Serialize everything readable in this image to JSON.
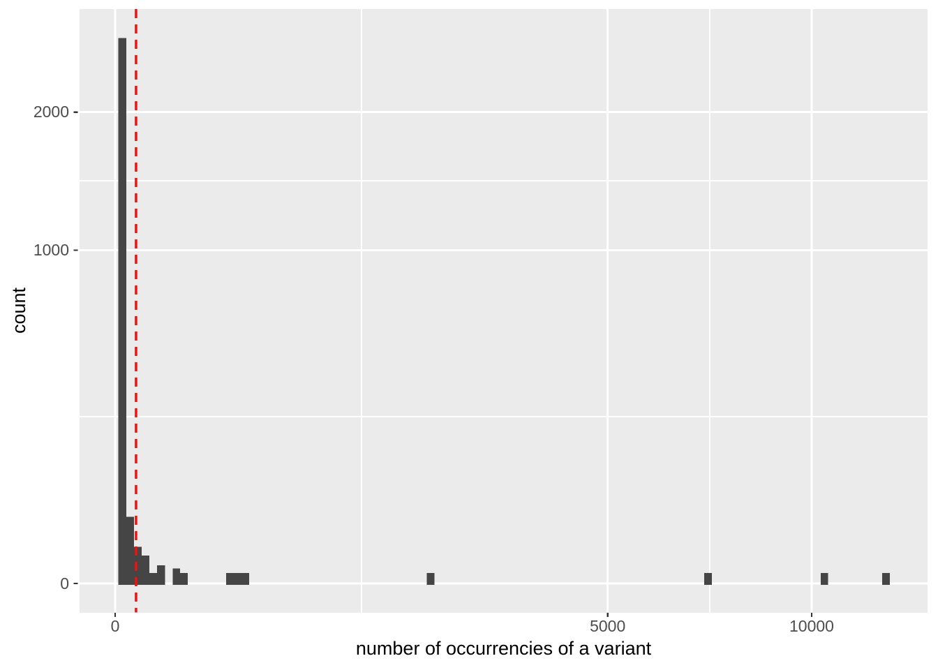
{
  "figure": {
    "background": "#FFFFFF"
  },
  "chart_data": {
    "type": "bar",
    "subtype": "histogram",
    "title": "",
    "xlabel": "number of occurrencies of a variant",
    "ylabel": "count",
    "x_scale": "sqrt",
    "y_scale": "sqrt",
    "xlim": [
      0,
      13600
    ],
    "ylim": [
      0,
      2970
    ],
    "grid": true,
    "legend_position": "none",
    "x_ticks": [
      {
        "value": 0,
        "label": "0"
      },
      {
        "value": 5000,
        "label": "5000"
      },
      {
        "value": 10000,
        "label": "10000"
      }
    ],
    "y_ticks": [
      {
        "value": 0,
        "label": "0"
      },
      {
        "value": 1000,
        "label": "1000"
      },
      {
        "value": 2000,
        "label": "2000"
      }
    ],
    "x_minor_breaks": [
      1250,
      7290
    ],
    "y_minor_breaks": [
      250,
      1460
    ],
    "bins": [
      {
        "x0": 0.2,
        "x1": 2.6,
        "count": 2680
      },
      {
        "x0": 2.6,
        "x1": 7.3,
        "count": 40
      },
      {
        "x0": 7.3,
        "x1": 14.5,
        "count": 12
      },
      {
        "x0": 14.5,
        "x1": 24,
        "count": 7
      },
      {
        "x0": 24,
        "x1": 36,
        "count": 1
      },
      {
        "x0": 36,
        "x1": 51,
        "count": 3
      },
      {
        "x0": 68,
        "x1": 87,
        "count": 2
      },
      {
        "x0": 87,
        "x1": 109,
        "count": 1
      },
      {
        "x0": 254,
        "x1": 290,
        "count": 1
      },
      {
        "x0": 290,
        "x1": 329,
        "count": 1
      },
      {
        "x0": 329,
        "x1": 370,
        "count": 1
      },
      {
        "x0": 2000,
        "x1": 2100,
        "count": 1
      },
      {
        "x0": 7150,
        "x1": 7340,
        "count": 1
      },
      {
        "x0": 10260,
        "x1": 10480,
        "count": 1
      },
      {
        "x0": 12130,
        "x1": 12370,
        "count": 1
      }
    ],
    "vline": {
      "x": 9,
      "style": "dashed",
      "color": "#F01111"
    },
    "colors": {
      "bar": "#454545",
      "panel_bg": "#EBEBEB",
      "gridline": "#FFFFFF",
      "tick_text": "#4D4D4D",
      "axis_title_text": "#000000",
      "tick_mark": "#333333",
      "vline": "#F01111"
    }
  }
}
